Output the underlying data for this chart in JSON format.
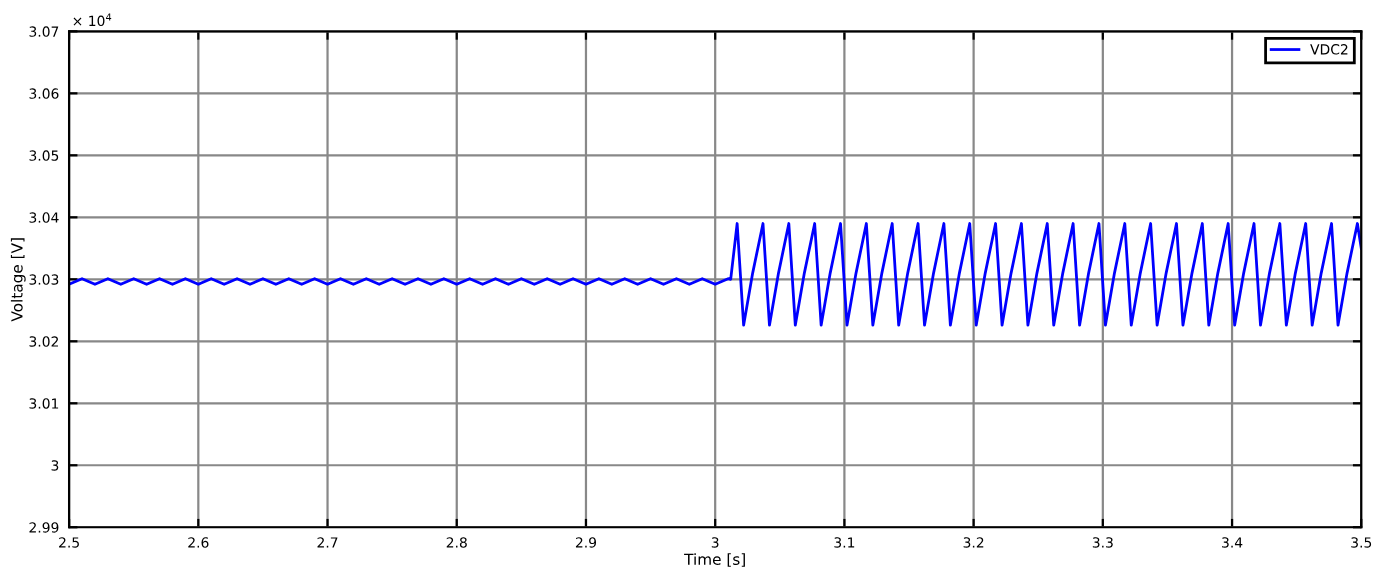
{
  "chart_data": {
    "type": "line",
    "xlabel": "Time [s]",
    "ylabel": "Voltage [V]",
    "annotations": [
      "× 10$^{4}$"
    ],
    "xlim": [
      2.5,
      3.5
    ],
    "xticks": [
      2.5,
      2.6,
      2.7,
      2.8,
      2.9,
      3,
      3.1,
      3.2,
      3.3,
      3.4,
      3.5
    ],
    "ylim": [
      2.99,
      3.07
    ],
    "yticks": [
      2.99,
      3,
      3.01,
      3.02,
      3.03,
      3.04,
      3.05,
      3.06,
      3.07
    ],
    "grid": true,
    "legend": "top right",
    "line_style": "solid",
    "marker": "none",
    "series": [
      {
        "name": "VDC2",
        "color": "#0000ff",
        "x": [
          2.5,
          2.51,
          2.52,
          2.53,
          2.54,
          2.55,
          2.56,
          2.57,
          2.58,
          2.59,
          2.6,
          2.61,
          2.62,
          2.63,
          2.64,
          2.65,
          2.66,
          2.67,
          2.68,
          2.69,
          2.7,
          2.71,
          2.72,
          2.73,
          2.74,
          2.75,
          2.76,
          2.77,
          2.78,
          2.79,
          2.8,
          2.81,
          2.82,
          2.83,
          2.84,
          2.85,
          2.86,
          2.87,
          2.88,
          2.89,
          2.9,
          2.91,
          2.92,
          2.93,
          2.94,
          2.95,
          2.96,
          2.97,
          2.98,
          2.99,
          3.0,
          3.01,
          3.012,
          3.017,
          3.022,
          3.029,
          3.037,
          3.042,
          3.049,
          3.057,
          3.062,
          3.069,
          3.077,
          3.082,
          3.089,
          3.097,
          3.102,
          3.109,
          3.117,
          3.122,
          3.129,
          3.137,
          3.142,
          3.149,
          3.157,
          3.162,
          3.169,
          3.177,
          3.182,
          3.189,
          3.197,
          3.202,
          3.209,
          3.217,
          3.222,
          3.229,
          3.237,
          3.242,
          3.249,
          3.257,
          3.262,
          3.269,
          3.277,
          3.282,
          3.289,
          3.297,
          3.302,
          3.309,
          3.317,
          3.322,
          3.329,
          3.337,
          3.342,
          3.349,
          3.357,
          3.362,
          3.369,
          3.377,
          3.382,
          3.389,
          3.397,
          3.402,
          3.409,
          3.417,
          3.422,
          3.429,
          3.437,
          3.442,
          3.449,
          3.457,
          3.462,
          3.469,
          3.477,
          3.482,
          3.489,
          3.497,
          3.5
        ],
        "values": [
          3.0292,
          3.0301,
          3.0292,
          3.0301,
          3.0292,
          3.0301,
          3.0292,
          3.0301,
          3.0292,
          3.0301,
          3.0292,
          3.0301,
          3.0292,
          3.0301,
          3.0292,
          3.0301,
          3.0292,
          3.0301,
          3.0292,
          3.0301,
          3.0292,
          3.0301,
          3.0292,
          3.0301,
          3.0292,
          3.0301,
          3.0292,
          3.0301,
          3.0292,
          3.0301,
          3.0292,
          3.0301,
          3.0292,
          3.0301,
          3.0292,
          3.0301,
          3.0292,
          3.0301,
          3.0292,
          3.0301,
          3.0292,
          3.0301,
          3.0292,
          3.0301,
          3.0292,
          3.0301,
          3.0292,
          3.0301,
          3.0292,
          3.0301,
          3.0292,
          3.0301,
          3.03,
          3.039,
          3.0226,
          3.031,
          3.039,
          3.0226,
          3.031,
          3.039,
          3.0226,
          3.031,
          3.039,
          3.0226,
          3.031,
          3.039,
          3.0226,
          3.031,
          3.039,
          3.0226,
          3.031,
          3.039,
          3.0226,
          3.031,
          3.039,
          3.0226,
          3.031,
          3.039,
          3.0226,
          3.031,
          3.039,
          3.0226,
          3.031,
          3.039,
          3.0226,
          3.031,
          3.039,
          3.0226,
          3.031,
          3.039,
          3.0226,
          3.031,
          3.039,
          3.0226,
          3.031,
          3.039,
          3.0226,
          3.031,
          3.039,
          3.0226,
          3.031,
          3.039,
          3.0226,
          3.031,
          3.039,
          3.0226,
          3.031,
          3.039,
          3.0226,
          3.031,
          3.039,
          3.0226,
          3.031,
          3.039,
          3.0226,
          3.031,
          3.039,
          3.0226,
          3.031,
          3.039,
          3.0226,
          3.031,
          3.039,
          3.0226,
          3.031,
          3.039,
          3.035
        ]
      }
    ]
  }
}
